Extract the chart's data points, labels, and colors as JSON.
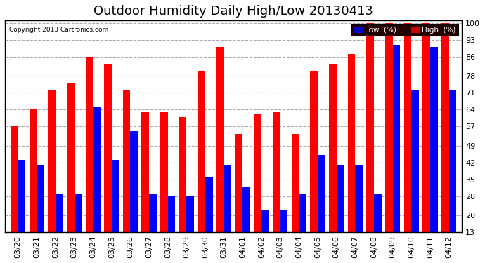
{
  "title": "Outdoor Humidity Daily High/Low 20130413",
  "copyright": "Copyright 2013 Cartronics.com",
  "legend_low": "Low  (%)",
  "legend_high": "High  (%)",
  "dates": [
    "03/20",
    "03/21",
    "03/22",
    "03/23",
    "03/24",
    "03/25",
    "03/26",
    "03/27",
    "03/28",
    "03/29",
    "03/30",
    "03/31",
    "04/01",
    "04/02",
    "04/03",
    "04/04",
    "04/05",
    "04/06",
    "04/07",
    "04/08",
    "04/09",
    "04/10",
    "04/11",
    "04/12"
  ],
  "low_values": [
    43,
    41,
    29,
    29,
    65,
    43,
    55,
    29,
    28,
    28,
    36,
    41,
    32,
    22,
    22,
    29,
    45,
    41,
    41,
    29,
    91,
    72,
    90,
    72
  ],
  "high_values": [
    57,
    64,
    72,
    75,
    86,
    83,
    72,
    63,
    63,
    61,
    80,
    90,
    54,
    62,
    63,
    54,
    80,
    83,
    87,
    100,
    100,
    100,
    100,
    100
  ],
  "low_color": "#0000ff",
  "high_color": "#ff0000",
  "bg_color": "#ffffff",
  "grid_color": "#aaaaaa",
  "ylim_min": 13,
  "ylim_max": 100,
  "yticks": [
    13,
    20,
    28,
    35,
    42,
    49,
    57,
    64,
    71,
    78,
    86,
    93,
    100
  ],
  "title_fontsize": 13,
  "tick_fontsize": 8,
  "legend_low_bg": "#0000cc",
  "legend_high_bg": "#cc0000",
  "bar_bottom": 13
}
